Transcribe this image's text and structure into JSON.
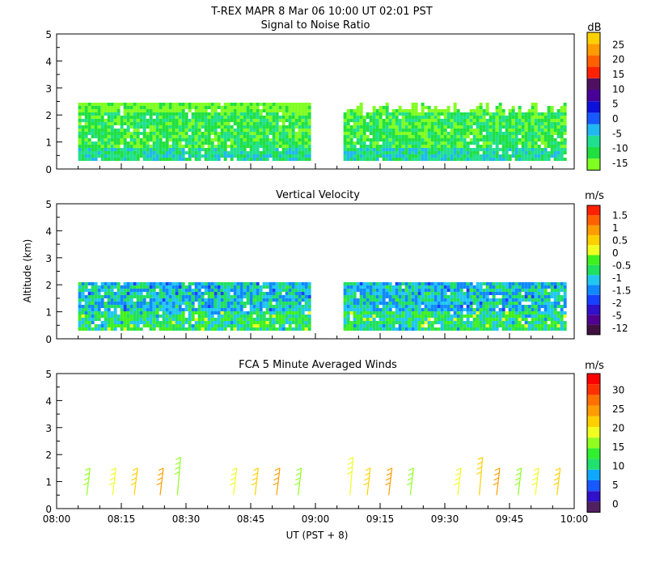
{
  "header": {
    "title": "T-REX   MAPR   8 Mar 06   10:00 UT   02:01   PST"
  },
  "colors": {
    "snr": [
      "#80ff20",
      "#20e040",
      "#20e090",
      "#20b8f0",
      "#1858ff",
      "#0c10d8",
      "#480098",
      "#501060",
      "#ff2000",
      "#ff6000",
      "#ff9c00",
      "#ffd000"
    ],
    "vv": [
      "#401040",
      "#500090",
      "#3010c8",
      "#1840ff",
      "#1088ff",
      "#20c8f0",
      "#20e060",
      "#40f020",
      "#f0ff20",
      "#ffd000",
      "#ff9c00",
      "#ff6000",
      "#ff2000"
    ],
    "wind": [
      "#502060",
      "#3010c8",
      "#1858ff",
      "#10a8ff",
      "#20e070",
      "#30f030",
      "#90ff20",
      "#f0ff20",
      "#ffd000",
      "#ff9c00",
      "#ff7000",
      "#ff3000",
      "#ff0000"
    ]
  },
  "chart_data": [
    {
      "type": "heatmap",
      "title": "Signal to Noise Ratio",
      "ylabel": "",
      "xlabel": "",
      "ylim": [
        0,
        5
      ],
      "yticks": [
        "0",
        "1",
        "2",
        "3",
        "4",
        "5"
      ],
      "xlim": [
        "08:00",
        "10:00"
      ],
      "colorbar": {
        "unit": "dB",
        "labels": [
          "25",
          "20",
          "15",
          "10",
          "5",
          "0",
          "-5",
          "-10",
          "-15"
        ]
      },
      "data_gap": [
        "08:59",
        "09:06"
      ],
      "layers": [
        {
          "from_km": 0.3,
          "to_km": 0.7,
          "level": "-5"
        },
        {
          "from_km": 0.7,
          "to_km": 1.2,
          "level": "-10"
        },
        {
          "from_km": 1.2,
          "to_km": 2.0,
          "level": "-10"
        },
        {
          "from_km": 2.0,
          "to_km": 2.4,
          "level": "-15"
        }
      ]
    },
    {
      "type": "heatmap",
      "title": "Vertical Velocity",
      "ylabel": "Altitude (km)",
      "xlabel": "",
      "ylim": [
        0,
        5
      ],
      "yticks": [
        "0",
        "1",
        "2",
        "3",
        "4",
        "5"
      ],
      "xlim": [
        "08:00",
        "10:00"
      ],
      "colorbar": {
        "unit": "m/s",
        "labels": [
          "1.5",
          "1",
          "0.5",
          "0",
          "-0.5",
          "-1",
          "-1.5",
          "-2",
          "-5",
          "-12"
        ]
      },
      "data_gap": [
        "08:59",
        "09:06"
      ],
      "layers": [
        {
          "from_km": 0.3,
          "to_km": 1.0,
          "level": "0"
        },
        {
          "from_km": 1.0,
          "to_km": 2.0,
          "level": "-0.5"
        }
      ]
    },
    {
      "type": "scatter",
      "title": "FCA 5 Minute Averaged Winds",
      "ylabel": "",
      "xlabel": "UT  (PST + 8)",
      "ylim": [
        0,
        5
      ],
      "yticks": [
        "0",
        "1",
        "2",
        "3",
        "4",
        "5"
      ],
      "xticks": [
        "08:00",
        "08:15",
        "08:30",
        "08:45",
        "09:00",
        "09:15",
        "09:30",
        "09:45",
        "10:00"
      ],
      "colorbar": {
        "unit": "m/s",
        "labels": [
          "30",
          "25",
          "20",
          "15",
          "10",
          "5",
          "0"
        ]
      },
      "barb_times": [
        "08:07",
        "08:13",
        "08:18",
        "08:24",
        "08:28",
        "08:41",
        "08:46",
        "08:51",
        "08:56",
        "09:08",
        "09:12",
        "09:17",
        "09:22",
        "09:33",
        "09:38",
        "09:42",
        "09:47",
        "09:51",
        "09:56"
      ]
    }
  ]
}
